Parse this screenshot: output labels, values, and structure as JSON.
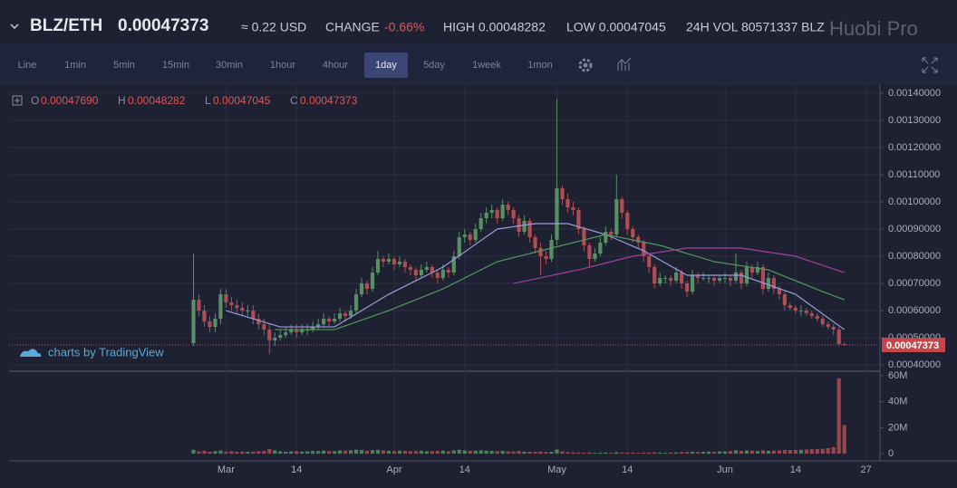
{
  "header": {
    "pair": "BLZ/ETH",
    "price": "0.00047373",
    "usd": "≈ 0.22 USD",
    "change_label": "CHANGE",
    "change": "-0.66%",
    "high": "HIGH 0.00048282",
    "low": "LOW 0.00047045",
    "volume": "24H VOL 80571337 BLZ",
    "brand": "Huobi Pro"
  },
  "toolbar": {
    "intervals": [
      "Line",
      "1min",
      "5min",
      "15min",
      "30min",
      "1hour",
      "4hour",
      "1day",
      "5day",
      "1week",
      "1mon"
    ],
    "active_index": 7
  },
  "legend": {
    "o_label": "O",
    "o": "0.00047690",
    "h_label": "H",
    "h": "0.00048282",
    "l_label": "L",
    "l": "0.00047045",
    "c_label": "C",
    "c": "0.00047373"
  },
  "watermark": "charts by TradingView",
  "chart_data": {
    "type": "candlestick",
    "x": [
      -1,
      0,
      1,
      2,
      3,
      4,
      5,
      6,
      7,
      8,
      9,
      10,
      11,
      12,
      13,
      14,
      15,
      16,
      17,
      18,
      19,
      20,
      21,
      22,
      23,
      24,
      25,
      26,
      27,
      28,
      29,
      30,
      31,
      32,
      33,
      34,
      35,
      36,
      37,
      38,
      39,
      40,
      41,
      42,
      43,
      44,
      45,
      46,
      47,
      48,
      49,
      50,
      51,
      52,
      53,
      54,
      55,
      56,
      57,
      58,
      59,
      60,
      61,
      62,
      63,
      64,
      65,
      66,
      67,
      68,
      69,
      70,
      71,
      72,
      73,
      74,
      75,
      76,
      77,
      78,
      79,
      80,
      81,
      82,
      83,
      84,
      85,
      86,
      87,
      88,
      89,
      90,
      91,
      92,
      93,
      94,
      95,
      96,
      97,
      98,
      99,
      100,
      101,
      102,
      103,
      104,
      105,
      106,
      107,
      108,
      109,
      110,
      111,
      112,
      113,
      114,
      115,
      116,
      117,
      118,
      119
    ],
    "ohlc": [
      [
        0.00048,
        0.00081,
        0.00047,
        0.00064
      ],
      [
        0.00064,
        0.00066,
        0.00058,
        0.0006
      ],
      [
        0.0006,
        0.00062,
        0.00054,
        0.00056
      ],
      [
        0.00056,
        0.00058,
        0.00052,
        0.00054
      ],
      [
        0.00054,
        0.00059,
        0.00052,
        0.00057
      ],
      [
        0.00057,
        0.00068,
        0.00055,
        0.00066
      ],
      [
        0.00066,
        0.00068,
        0.00061,
        0.00063
      ],
      [
        0.00063,
        0.00065,
        0.0006,
        0.00062
      ],
      [
        0.00062,
        0.00064,
        0.00059,
        0.00061
      ],
      [
        0.00061,
        0.00063,
        0.00058,
        0.0006
      ],
      [
        0.0006,
        0.00062,
        0.00058,
        0.0006
      ],
      [
        0.0006,
        0.00062,
        0.00055,
        0.00057
      ],
      [
        0.00057,
        0.00059,
        0.00053,
        0.00055
      ],
      [
        0.00055,
        0.00057,
        0.00051,
        0.00053
      ],
      [
        0.00053,
        0.00055,
        0.00044,
        0.00049
      ],
      [
        0.00049,
        0.00052,
        0.00047,
        0.0005
      ],
      [
        0.0005,
        0.00053,
        0.00049,
        0.00051
      ],
      [
        0.00051,
        0.00054,
        0.0005,
        0.00052
      ],
      [
        0.00052,
        0.00055,
        0.00051,
        0.00053
      ],
      [
        0.00053,
        0.00055,
        0.0005,
        0.00052
      ],
      [
        0.00052,
        0.00055,
        0.00051,
        0.00053
      ],
      [
        0.00053,
        0.00055,
        0.00051,
        0.00053
      ],
      [
        0.00053,
        0.00056,
        0.00052,
        0.00054
      ],
      [
        0.00054,
        0.00057,
        0.00053,
        0.00055
      ],
      [
        0.00055,
        0.00059,
        0.00054,
        0.00057
      ],
      [
        0.00057,
        0.00058,
        0.00054,
        0.00056
      ],
      [
        0.00056,
        0.00059,
        0.00055,
        0.00057
      ],
      [
        0.00057,
        0.00061,
        0.00056,
        0.00059
      ],
      [
        0.00059,
        0.0006,
        0.00056,
        0.00058
      ],
      [
        0.00058,
        0.00062,
        0.00057,
        0.0006
      ],
      [
        0.0006,
        0.00068,
        0.00059,
        0.00066
      ],
      [
        0.00066,
        0.00072,
        0.00065,
        0.0007
      ],
      [
        0.0007,
        0.00071,
        0.00066,
        0.00068
      ],
      [
        0.00068,
        0.00076,
        0.00067,
        0.00074
      ],
      [
        0.00074,
        0.00082,
        0.00073,
        0.00079
      ],
      [
        0.00079,
        0.0008,
        0.00076,
        0.00078
      ],
      [
        0.00078,
        0.00081,
        0.00077,
        0.00079
      ],
      [
        0.00079,
        0.0008,
        0.00075,
        0.00077
      ],
      [
        0.00077,
        0.0008,
        0.00076,
        0.00078
      ],
      [
        0.00078,
        0.00079,
        0.00074,
        0.00076
      ],
      [
        0.00076,
        0.00077,
        0.00073,
        0.00075
      ],
      [
        0.00075,
        0.00076,
        0.00071,
        0.00073
      ],
      [
        0.00073,
        0.00077,
        0.00072,
        0.00075
      ],
      [
        0.00075,
        0.00078,
        0.00074,
        0.00076
      ],
      [
        0.00076,
        0.00077,
        0.00072,
        0.00074
      ],
      [
        0.00074,
        0.00075,
        0.0007,
        0.00072
      ],
      [
        0.00072,
        0.00077,
        0.00071,
        0.00075
      ],
      [
        0.00075,
        0.00076,
        0.00072,
        0.00074
      ],
      [
        0.00074,
        0.00082,
        0.00073,
        0.0008
      ],
      [
        0.0008,
        0.00089,
        0.00079,
        0.00087
      ],
      [
        0.00087,
        0.0009,
        0.00085,
        0.00088
      ],
      [
        0.00088,
        0.00089,
        0.00084,
        0.00086
      ],
      [
        0.00086,
        0.00092,
        0.00085,
        0.0009
      ],
      [
        0.0009,
        0.00096,
        0.00089,
        0.00094
      ],
      [
        0.00094,
        0.00098,
        0.00092,
        0.00096
      ],
      [
        0.00096,
        0.00099,
        0.00094,
        0.00097
      ],
      [
        0.00097,
        0.00098,
        0.00092,
        0.00094
      ],
      [
        0.00094,
        0.00101,
        0.00093,
        0.00099
      ],
      [
        0.00099,
        0.001,
        0.00095,
        0.00097
      ],
      [
        0.00097,
        0.00098,
        0.00092,
        0.00094
      ],
      [
        0.00094,
        0.00095,
        0.00087,
        0.00089
      ],
      [
        0.00089,
        0.00095,
        0.00088,
        0.00093
      ],
      [
        0.00093,
        0.00094,
        0.00085,
        0.00087
      ],
      [
        0.00087,
        0.00088,
        0.00081,
        0.00083
      ],
      [
        0.00083,
        0.00085,
        0.00073,
        0.0008
      ],
      [
        0.0008,
        0.00082,
        0.00077,
        0.00079
      ],
      [
        0.00079,
        0.00088,
        0.00078,
        0.00086
      ],
      [
        0.00086,
        0.00138,
        0.00084,
        0.00105
      ],
      [
        0.00105,
        0.00106,
        0.00099,
        0.00101
      ],
      [
        0.00101,
        0.00103,
        0.00096,
        0.00098
      ],
      [
        0.00098,
        0.001,
        0.00095,
        0.00097
      ],
      [
        0.00097,
        0.00098,
        0.00088,
        0.0009
      ],
      [
        0.0009,
        0.00091,
        0.00082,
        0.00084
      ],
      [
        0.00084,
        0.00085,
        0.00076,
        0.00079
      ],
      [
        0.00079,
        0.00083,
        0.00078,
        0.00081
      ],
      [
        0.00081,
        0.00087,
        0.0008,
        0.00085
      ],
      [
        0.00085,
        0.00091,
        0.00084,
        0.00089
      ],
      [
        0.00089,
        0.0009,
        0.00086,
        0.00088
      ],
      [
        0.00088,
        0.0011,
        0.00087,
        0.00101
      ],
      [
        0.00101,
        0.00102,
        0.00094,
        0.00096
      ],
      [
        0.00096,
        0.00097,
        0.00088,
        0.0009
      ],
      [
        0.0009,
        0.00091,
        0.00085,
        0.00087
      ],
      [
        0.00087,
        0.00088,
        0.00083,
        0.00085
      ],
      [
        0.00085,
        0.00086,
        0.00078,
        0.0008
      ],
      [
        0.0008,
        0.00081,
        0.00074,
        0.00076
      ],
      [
        0.00076,
        0.00077,
        0.00068,
        0.0007
      ],
      [
        0.0007,
        0.00074,
        0.00069,
        0.00072
      ],
      [
        0.00072,
        0.00073,
        0.0007,
        0.00072
      ],
      [
        0.00072,
        0.00073,
        0.00069,
        0.00071
      ],
      [
        0.00071,
        0.00076,
        0.0007,
        0.00074
      ],
      [
        0.00074,
        0.00075,
        0.00068,
        0.0007
      ],
      [
        0.0007,
        0.00071,
        0.00065,
        0.00067
      ],
      [
        0.00067,
        0.00075,
        0.00066,
        0.00073
      ],
      [
        0.00073,
        0.00074,
        0.0007,
        0.00072
      ],
      [
        0.00072,
        0.00074,
        0.00071,
        0.00072
      ],
      [
        0.00072,
        0.00073,
        0.0007,
        0.00072
      ],
      [
        0.00072,
        0.00073,
        0.00069,
        0.00071
      ],
      [
        0.00071,
        0.00073,
        0.0007,
        0.00072
      ],
      [
        0.00072,
        0.00074,
        0.0007,
        0.00072
      ],
      [
        0.00072,
        0.00073,
        0.00069,
        0.00071
      ],
      [
        0.00071,
        0.00081,
        0.0007,
        0.00074
      ],
      [
        0.00074,
        0.00075,
        0.00068,
        0.0007
      ],
      [
        0.0007,
        0.00078,
        0.00069,
        0.00076
      ],
      [
        0.00076,
        0.00077,
        0.00072,
        0.00074
      ],
      [
        0.00074,
        0.00078,
        0.00073,
        0.00076
      ],
      [
        0.00076,
        0.00077,
        0.00066,
        0.00068
      ],
      [
        0.00068,
        0.00074,
        0.00067,
        0.00072
      ],
      [
        0.00072,
        0.00073,
        0.00066,
        0.00068
      ],
      [
        0.00068,
        0.00069,
        0.00064,
        0.00066
      ],
      [
        0.00066,
        0.00067,
        0.0006,
        0.00062
      ],
      [
        0.00062,
        0.00063,
        0.0006,
        0.00061
      ],
      [
        0.00061,
        0.00062,
        0.00059,
        0.0006
      ],
      [
        0.0006,
        0.00062,
        0.00058,
        0.0006
      ],
      [
        0.0006,
        0.00061,
        0.00058,
        0.00059
      ],
      [
        0.00059,
        0.0006,
        0.00057,
        0.00058
      ],
      [
        0.00058,
        0.00059,
        0.00056,
        0.00057
      ],
      [
        0.00057,
        0.00058,
        0.00054,
        0.00055
      ],
      [
        0.00055,
        0.00056,
        0.00053,
        0.00054
      ],
      [
        0.00054,
        0.00055,
        0.00051,
        0.00053
      ],
      [
        0.00053,
        0.00054,
        0.00047,
        0.0004769
      ],
      [
        0.0004769,
        0.00048282,
        0.00047045,
        0.00047373
      ]
    ],
    "volume": [
      3000000,
      1800000,
      2200000,
      1500000,
      2000000,
      2400000,
      1600000,
      1900000,
      1400000,
      1700000,
      1500000,
      1600000,
      1900000,
      2100000,
      3500000,
      2600000,
      1800000,
      1500000,
      1700000,
      2000000,
      1600000,
      1800000,
      2200000,
      2000000,
      2400000,
      2100000,
      1900000,
      2500000,
      2300000,
      2600000,
      3100000,
      2900000,
      2200000,
      2700000,
      3000000,
      2500000,
      2200000,
      2000000,
      2300000,
      2100000,
      1900000,
      2000000,
      2200000,
      1800000,
      1900000,
      2100000,
      2400000,
      1800000,
      2600000,
      3000000,
      2500000,
      2200000,
      2400000,
      2600000,
      2300000,
      2100000,
      1900000,
      2200000,
      1800000,
      1700000,
      2000000,
      1600000,
      1500000,
      1400000,
      1700000,
      1200000,
      1500000,
      3200000,
      1800000,
      1300000,
      1000000,
      900000,
      800000,
      1000000,
      700000,
      800000,
      900000,
      700000,
      1200000,
      900000,
      800000,
      700000,
      600000,
      800000,
      900000,
      1100000,
      800000,
      700000,
      900000,
      1000000,
      1200000,
      1300000,
      1500000,
      1200000,
      1400000,
      1600000,
      1500000,
      1800000,
      1700000,
      2000000,
      2600000,
      2200000,
      2500000,
      2300000,
      2100000,
      2600000,
      2200000,
      2400000,
      2500000,
      2800000,
      2700000,
      2900000,
      3000000,
      3200000,
      3400000,
      3600000,
      3800000,
      4200000,
      5000000,
      58000000,
      22000000
    ],
    "lines": [
      {
        "color": "#9c9cdc",
        "x": [
          5,
          15,
          25,
          35,
          45,
          55,
          62,
          68,
          75,
          82,
          90,
          100,
          110,
          119
        ],
        "values": [
          0.0006,
          0.00054,
          0.00054,
          0.00066,
          0.00076,
          0.0009,
          0.00092,
          0.00092,
          0.00088,
          0.00082,
          0.00073,
          0.00073,
          0.00066,
          0.00053
        ]
      },
      {
        "color": "#4f9a5c",
        "x": [
          14,
          25,
          35,
          45,
          55,
          65,
          75,
          85,
          95,
          105,
          115,
          119
        ],
        "values": [
          0.00053,
          0.00053,
          0.0006,
          0.00068,
          0.00078,
          0.00083,
          0.00088,
          0.00084,
          0.00078,
          0.00075,
          0.00067,
          0.00064
        ]
      },
      {
        "color": "#a0409a",
        "x": [
          58,
          70,
          80,
          90,
          100,
          110,
          119
        ],
        "values": [
          0.0007,
          0.00075,
          0.0008,
          0.00083,
          0.00083,
          0.0008,
          0.00074
        ]
      }
    ],
    "up_color": "#589065",
    "down_color": "#ae4e54",
    "xlim": [
      -35,
      125.4
    ],
    "xticks": [
      {
        "value": 5,
        "label": "Mar"
      },
      {
        "value": 18,
        "label": "14"
      },
      {
        "value": 36,
        "label": "Apr"
      },
      {
        "value": 49,
        "label": "14"
      },
      {
        "value": 66,
        "label": "May"
      },
      {
        "value": 79,
        "label": "14"
      },
      {
        "value": 97,
        "label": "Jun"
      },
      {
        "value": 110,
        "label": "14"
      },
      {
        "value": 123,
        "label": "27"
      }
    ],
    "ylim": [
      0.000377,
      0.001433
    ],
    "yticks": [
      {
        "value": 0.0004,
        "label": "0.00040000"
      },
      {
        "value": 0.0005,
        "label": "0.00050000"
      },
      {
        "value": 0.0006,
        "label": "0.00060000"
      },
      {
        "value": 0.0007,
        "label": "0.00070000"
      },
      {
        "value": 0.0008,
        "label": "0.00080000"
      },
      {
        "value": 0.0009,
        "label": "0.00090000"
      },
      {
        "value": 0.001,
        "label": "0.00100000"
      },
      {
        "value": 0.0011,
        "label": "0.00110000"
      },
      {
        "value": 0.0012,
        "label": "0.00120000"
      },
      {
        "value": 0.0013,
        "label": "0.00130000"
      },
      {
        "value": 0.0014,
        "label": "0.00140000"
      }
    ],
    "vlim": [
      -4800000,
      62000000
    ],
    "vticks": [
      0,
      {
        "value": 20000000,
        "label": "20M"
      },
      {
        "value": 40000000,
        "label": "40M"
      },
      {
        "value": 60000000,
        "label": "60M"
      }
    ],
    "last_price": {
      "value": 0.00047373,
      "label": "0.00047373"
    },
    "grid": true
  }
}
